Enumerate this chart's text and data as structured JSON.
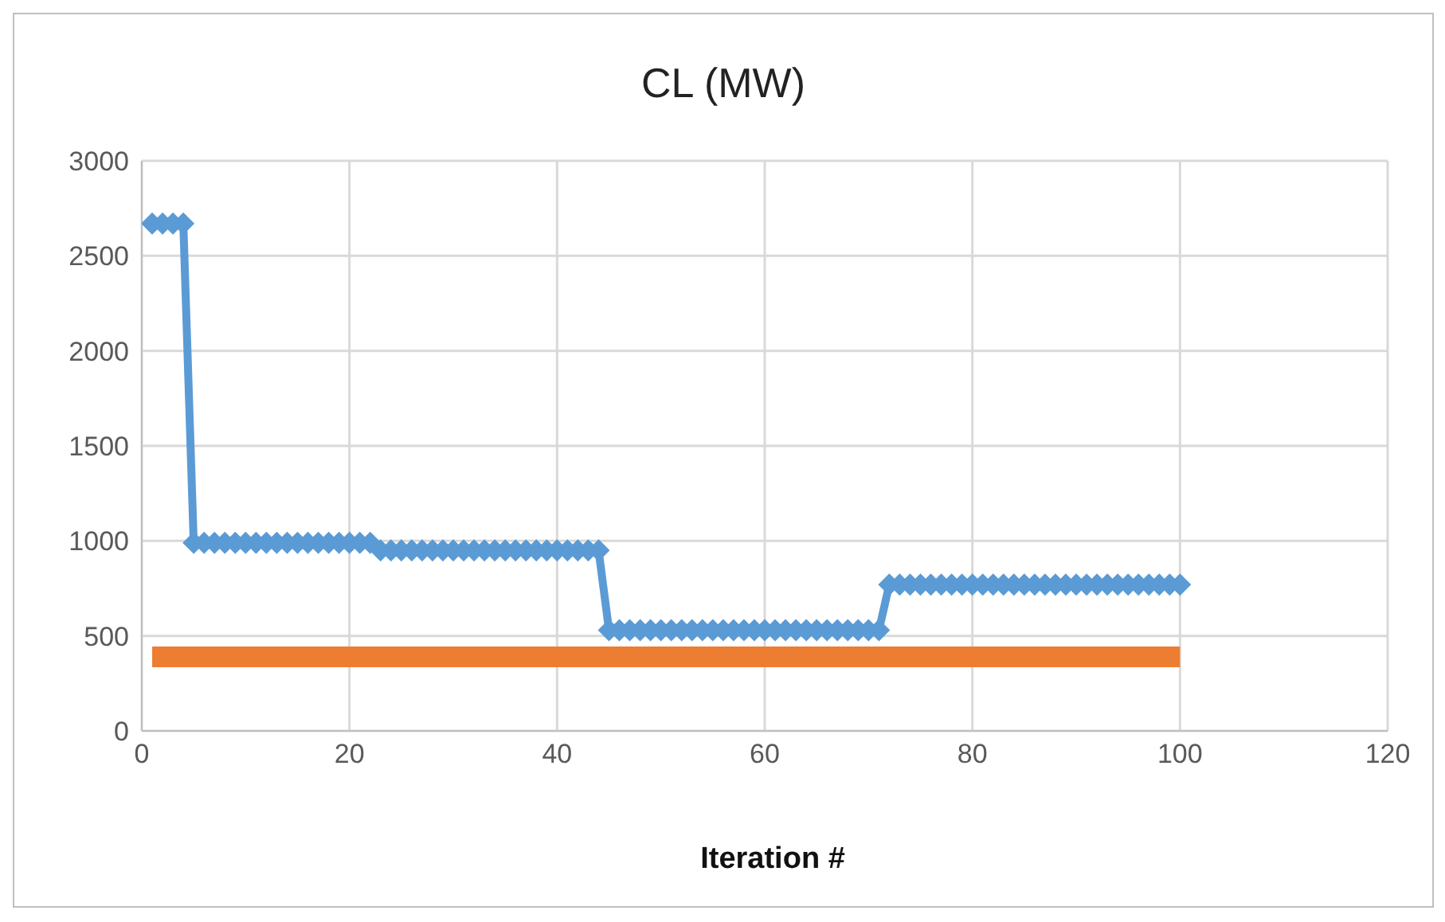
{
  "chart_data": {
    "type": "line",
    "title": "CL (MW)",
    "xlabel": "Iteration #",
    "x": [
      1,
      2,
      3,
      4,
      5,
      6,
      7,
      8,
      9,
      10,
      11,
      12,
      13,
      14,
      15,
      16,
      17,
      18,
      19,
      20,
      21,
      22,
      23,
      24,
      25,
      26,
      27,
      28,
      29,
      30,
      31,
      32,
      33,
      34,
      35,
      36,
      37,
      38,
      39,
      40,
      41,
      42,
      43,
      44,
      45,
      46,
      47,
      48,
      49,
      50,
      51,
      52,
      53,
      54,
      55,
      56,
      57,
      58,
      59,
      60,
      61,
      62,
      63,
      64,
      65,
      66,
      67,
      68,
      69,
      70,
      71,
      72,
      73,
      74,
      75,
      76,
      77,
      78,
      79,
      80,
      81,
      82,
      83,
      84,
      85,
      86,
      87,
      88,
      89,
      90,
      91,
      92,
      93,
      94,
      95,
      96,
      97,
      98,
      99,
      100
    ],
    "series": [
      {
        "color": "#5b9bd5",
        "marker": "diamond",
        "values": [
          2670,
          2670,
          2670,
          2670,
          990,
          990,
          990,
          990,
          990,
          990,
          990,
          990,
          990,
          990,
          990,
          990,
          990,
          990,
          990,
          990,
          990,
          990,
          950,
          950,
          950,
          950,
          950,
          950,
          950,
          950,
          950,
          950,
          950,
          950,
          950,
          950,
          950,
          950,
          950,
          950,
          950,
          950,
          950,
          950,
          530,
          530,
          530,
          530,
          530,
          530,
          530,
          530,
          530,
          530,
          530,
          530,
          530,
          530,
          530,
          530,
          530,
          530,
          530,
          530,
          530,
          530,
          530,
          530,
          530,
          530,
          530,
          770,
          770,
          770,
          770,
          770,
          770,
          770,
          770,
          770,
          770,
          770,
          770,
          770,
          770,
          770,
          770,
          770,
          770,
          770,
          770,
          770,
          770,
          770,
          770,
          770,
          770,
          770,
          770,
          770
        ]
      },
      {
        "color": "#ed7d31",
        "marker": "none",
        "values": [
          390,
          390,
          390,
          390,
          390,
          390,
          390,
          390,
          390,
          390,
          390,
          390,
          390,
          390,
          390,
          390,
          390,
          390,
          390,
          390,
          390,
          390,
          390,
          390,
          390,
          390,
          390,
          390,
          390,
          390,
          390,
          390,
          390,
          390,
          390,
          390,
          390,
          390,
          390,
          390,
          390,
          390,
          390,
          390,
          390,
          390,
          390,
          390,
          390,
          390,
          390,
          390,
          390,
          390,
          390,
          390,
          390,
          390,
          390,
          390,
          390,
          390,
          390,
          390,
          390,
          390,
          390,
          390,
          390,
          390,
          390,
          390,
          390,
          390,
          390,
          390,
          390,
          390,
          390,
          390,
          390,
          390,
          390,
          390,
          390,
          390,
          390,
          390,
          390,
          390,
          390,
          390,
          390,
          390,
          390,
          390,
          390,
          390,
          390,
          390
        ]
      }
    ],
    "xlim": [
      0,
      120
    ],
    "xticks": [
      0,
      20,
      40,
      60,
      80,
      100,
      120
    ],
    "ylim": [
      0,
      3000
    ],
    "yticks": [
      0,
      500,
      1000,
      1500,
      2000,
      2500,
      3000
    ],
    "grid": true,
    "legend": false
  }
}
